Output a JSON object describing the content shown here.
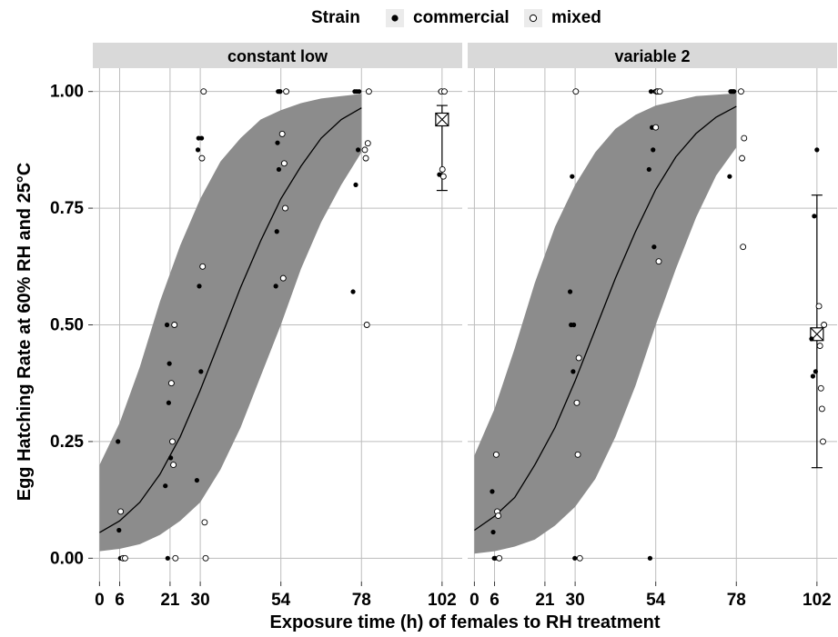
{
  "chart_data": {
    "type": "scatter",
    "legend": {
      "title": "Strain",
      "placement": "top",
      "entries": [
        {
          "label": "commercial",
          "marker": "filled-circle"
        },
        {
          "label": "mixed",
          "marker": "open-circle"
        }
      ]
    },
    "xlabel": "Exposure time (h) of females to RH treatment",
    "ylabel": "Egg Hatching Rate at 60% RH and 25°C",
    "xlim": [
      -2,
      108
    ],
    "ylim": [
      -0.05,
      1.05
    ],
    "x_ticks": [
      0,
      6,
      21,
      30,
      54,
      78,
      102
    ],
    "y_ticks": [
      0.0,
      0.25,
      0.5,
      0.75,
      1.0
    ],
    "y_tick_labels": [
      "0.00",
      "0.25",
      "0.50",
      "0.75",
      "1.00"
    ],
    "grid": true,
    "colors": {
      "panel_bg": "#ffffff",
      "strip_bg": "#d9d9d9",
      "grid": "#bdbdbd",
      "ribbon": "#8c8c8c",
      "line": "#000000"
    },
    "panels": [
      {
        "strip": "constant low",
        "fit_line": {
          "x": [
            0,
            6,
            12,
            18,
            24,
            30,
            36,
            42,
            48,
            54,
            60,
            66,
            72,
            78
          ],
          "y": [
            0.055,
            0.08,
            0.12,
            0.18,
            0.26,
            0.36,
            0.47,
            0.58,
            0.68,
            0.77,
            0.84,
            0.9,
            0.94,
            0.965
          ]
        },
        "ribbon": {
          "x": [
            0,
            6,
            12,
            18,
            24,
            30,
            36,
            42,
            48,
            54,
            60,
            66,
            72,
            78
          ],
          "lower": [
            0.015,
            0.02,
            0.03,
            0.05,
            0.08,
            0.12,
            0.19,
            0.28,
            0.39,
            0.5,
            0.62,
            0.72,
            0.8,
            0.87
          ],
          "upper": [
            0.2,
            0.29,
            0.41,
            0.55,
            0.67,
            0.77,
            0.85,
            0.9,
            0.94,
            0.96,
            0.975,
            0.985,
            0.99,
            0.995
          ]
        },
        "points_commercial": {
          "x": [
            5.5,
            5.8,
            6.2,
            6.6,
            7.2,
            19.6,
            20.1,
            20.3,
            20.6,
            20.8,
            21.2,
            29.0,
            29.3,
            29.5,
            29.7,
            30.2,
            30.4,
            52.5,
            52.8,
            53.2,
            53.0,
            53.4,
            53.6,
            53.8,
            75.5,
            76.0,
            76.3,
            76.6,
            77.0,
            77.3,
            101.2,
            101.5
          ],
          "y": [
            0.25,
            0.06,
            0.0,
            0.0,
            0.0,
            0.155,
            0.5,
            0.0,
            0.333,
            0.417,
            0.215,
            0.167,
            0.875,
            0.9,
            0.583,
            0.4,
            0.9,
            0.583,
            0.7,
            1.0,
            0.89,
            0.833,
            1.0,
            1.0,
            0.571,
            1.0,
            0.8,
            1.0,
            0.875,
            1.0,
            0.822,
            1.0
          ]
        },
        "points_mixed": {
          "x": [
            6.3,
            7.0,
            7.6,
            21.4,
            21.7,
            22.0,
            22.3,
            22.6,
            30.5,
            30.7,
            31.0,
            31.3,
            31.6,
            54.4,
            54.7,
            55.0,
            55.3,
            55.6,
            79.0,
            79.3,
            79.6,
            79.9,
            80.2,
            101.8,
            102.1,
            102.4,
            102.7
          ],
          "y": [
            0.1,
            0.0,
            0.0,
            0.375,
            0.25,
            0.2,
            0.5,
            0.0,
            0.857,
            0.625,
            1.0,
            0.077,
            0.0,
            0.909,
            0.6,
            0.846,
            0.75,
            1.0,
            0.875,
            0.857,
            0.5,
            0.889,
            1.0,
            1.0,
            0.833,
            0.818,
            1.0
          ]
        },
        "summary": {
          "x": 102,
          "mean": 0.94,
          "lower": 0.788,
          "upper": 0.97
        }
      },
      {
        "strip": "variable 2",
        "fit_line": {
          "x": [
            0,
            6,
            12,
            18,
            24,
            30,
            36,
            42,
            48,
            54,
            60,
            66,
            72,
            78
          ],
          "y": [
            0.06,
            0.09,
            0.13,
            0.2,
            0.28,
            0.38,
            0.49,
            0.6,
            0.7,
            0.79,
            0.86,
            0.91,
            0.945,
            0.968
          ]
        },
        "ribbon": {
          "x": [
            0,
            6,
            12,
            18,
            24,
            30,
            36,
            42,
            48,
            54,
            60,
            66,
            72,
            78
          ],
          "lower": [
            0.01,
            0.015,
            0.025,
            0.04,
            0.07,
            0.11,
            0.17,
            0.26,
            0.37,
            0.5,
            0.62,
            0.73,
            0.82,
            0.88
          ],
          "upper": [
            0.22,
            0.32,
            0.45,
            0.59,
            0.71,
            0.8,
            0.87,
            0.92,
            0.95,
            0.97,
            0.98,
            0.99,
            0.993,
            0.996
          ]
        },
        "points_commercial": {
          "x": [
            5.3,
            5.6,
            5.9,
            6.2,
            28.5,
            28.8,
            29.1,
            29.4,
            29.6,
            29.9,
            52.0,
            52.3,
            52.6,
            52.9,
            53.2,
            53.5,
            53.8,
            76.0,
            76.3,
            76.6,
            77.0,
            77.3,
            100.4,
            100.8,
            101.2,
            101.6,
            102.0
          ],
          "y": [
            0.143,
            0.056,
            0.0,
            0.0,
            0.571,
            0.5,
            0.818,
            0.4,
            0.5,
            0.0,
            0.833,
            0.0,
            1.0,
            0.923,
            0.875,
            0.667,
            1.0,
            0.818,
            1.0,
            1.0,
            1.0,
            1.0,
            0.47,
            0.39,
            0.733,
            0.4,
            0.875
          ]
        },
        "points_mixed": {
          "x": [
            6.5,
            6.8,
            7.1,
            7.4,
            30.2,
            30.5,
            30.8,
            31.1,
            31.4,
            54.0,
            54.3,
            54.6,
            54.9,
            55.2,
            79.4,
            79.7,
            80.0,
            80.3,
            102.6,
            102.9,
            103.2,
            103.5,
            103.8,
            104.1
          ],
          "y": [
            0.222,
            0.1,
            0.091,
            0.0,
            1.0,
            0.333,
            0.222,
            0.429,
            0.0,
            0.923,
            1.0,
            1.0,
            0.636,
            1.0,
            1.0,
            0.857,
            0.667,
            0.9,
            0.54,
            0.455,
            0.364,
            0.32,
            0.25,
            0.5
          ]
        },
        "summary": {
          "x": 102,
          "mean": 0.48,
          "lower": 0.194,
          "upper": 0.778
        }
      }
    ]
  }
}
